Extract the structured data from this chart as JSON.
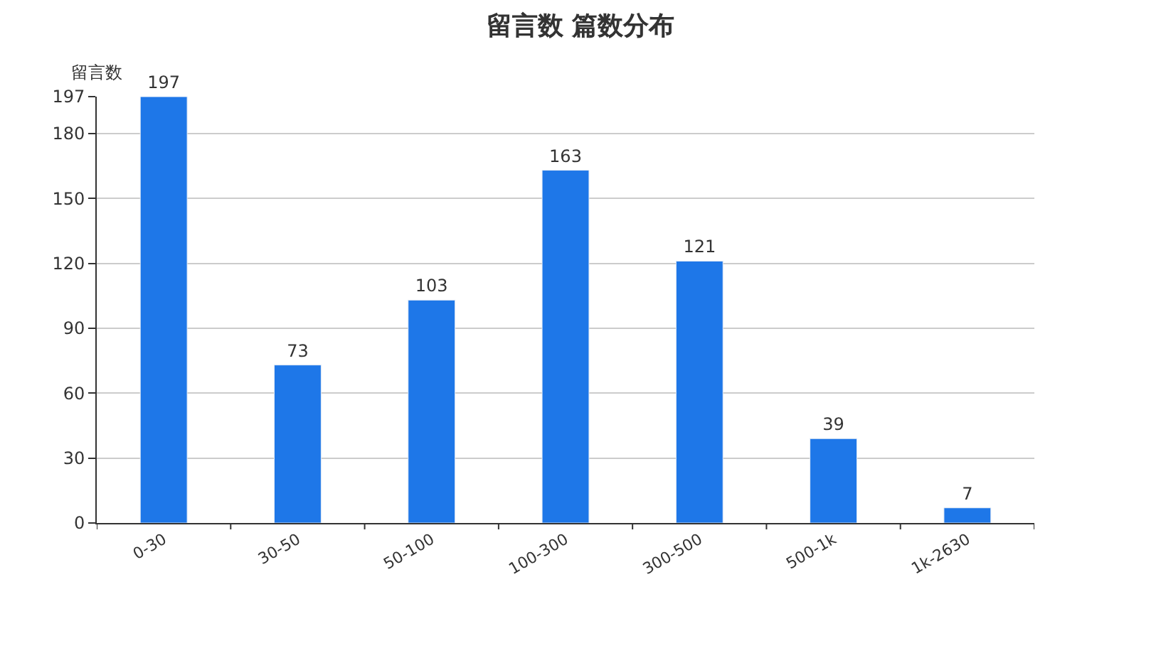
{
  "chart_data": {
    "type": "bar",
    "title": "留言数 篇数分布",
    "ylabel": "留言数",
    "categories": [
      "0-30",
      "30-50",
      "50-100",
      "100-300",
      "300-500",
      "500-1k",
      "1k-2630"
    ],
    "values": [
      197,
      73,
      103,
      163,
      121,
      39,
      7
    ],
    "color": "#1e77e8",
    "ylim": [
      0,
      197
    ],
    "yticks": [
      0,
      30,
      60,
      90,
      120,
      150,
      180,
      197
    ],
    "grid": "y",
    "data_labels": true
  }
}
